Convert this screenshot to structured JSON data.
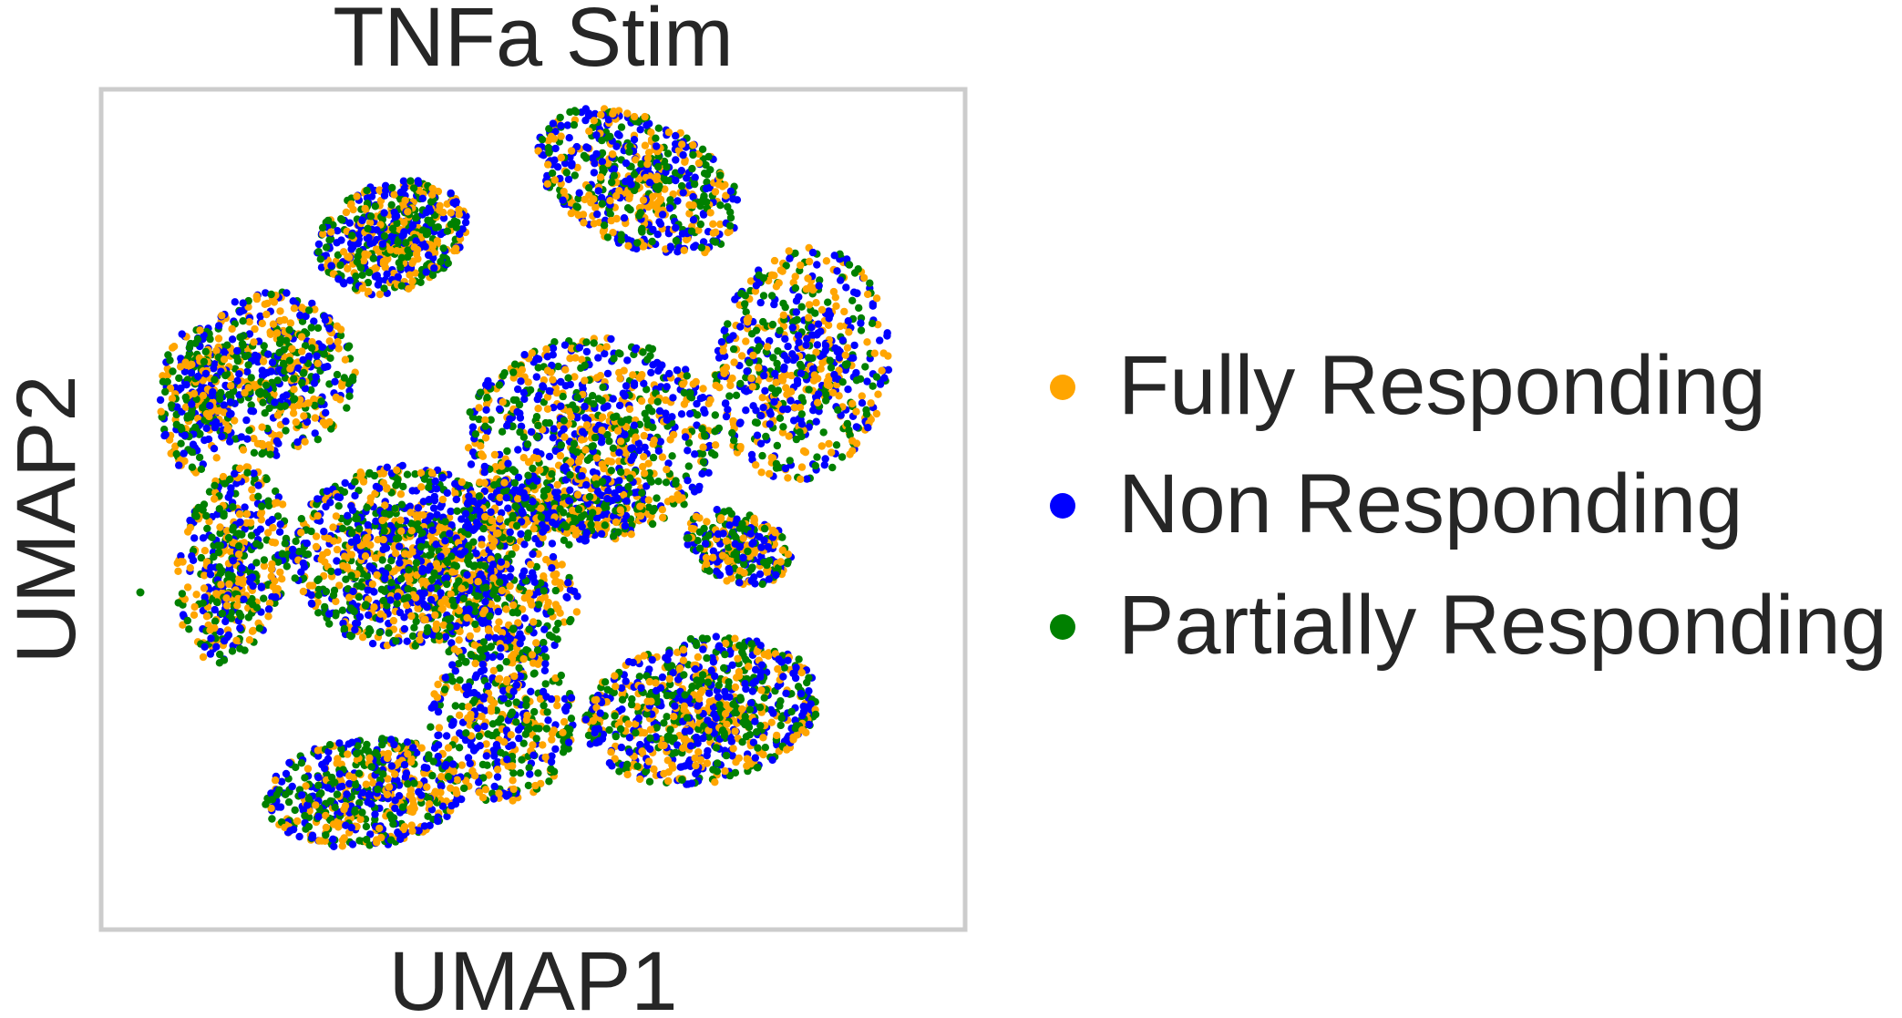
{
  "chart_data": {
    "type": "scatter",
    "title": "TNFa Stim",
    "xlabel": "UMAP1",
    "ylabel": "UMAP2",
    "grid": false,
    "ticks": false,
    "legend_placement": "right",
    "series": [
      {
        "name": "Fully Responding",
        "color": "#ffa500"
      },
      {
        "name": "Non Responding",
        "color": "#0000ff"
      },
      {
        "name": "Partially Responding",
        "color": "#008000"
      }
    ]
  }
}
